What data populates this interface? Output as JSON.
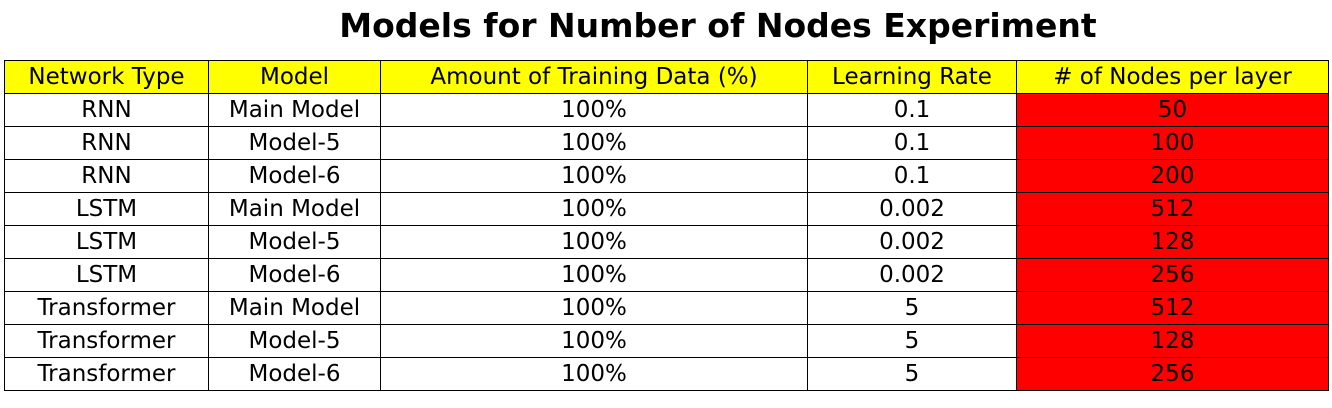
{
  "colors": {
    "header_bg": "#ffff00",
    "highlight_bg": "#ff0000",
    "cell_bg": "#ffffff",
    "border": "#000000"
  },
  "chart_data": {
    "type": "table",
    "title": "Models for Number of Nodes Experiment",
    "columns": [
      "Network Type",
      "Model",
      "Amount of Training Data (%)",
      "Learning Rate",
      "# of Nodes per layer"
    ],
    "highlight_column": 4,
    "rows": [
      [
        "RNN",
        "Main Model",
        "100%",
        "0.1",
        "50"
      ],
      [
        "RNN",
        "Model-5",
        "100%",
        "0.1",
        "100"
      ],
      [
        "RNN",
        "Model-6",
        "100%",
        "0.1",
        "200"
      ],
      [
        "LSTM",
        "Main Model",
        "100%",
        "0.002",
        "512"
      ],
      [
        "LSTM",
        "Model-5",
        "100%",
        "0.002",
        "128"
      ],
      [
        "LSTM",
        "Model-6",
        "100%",
        "0.002",
        "256"
      ],
      [
        "Transformer",
        "Main Model",
        "100%",
        "5",
        "512"
      ],
      [
        "Transformer",
        "Model-5",
        "100%",
        "5",
        "128"
      ],
      [
        "Transformer",
        "Model-6",
        "100%",
        "5",
        "256"
      ]
    ]
  }
}
